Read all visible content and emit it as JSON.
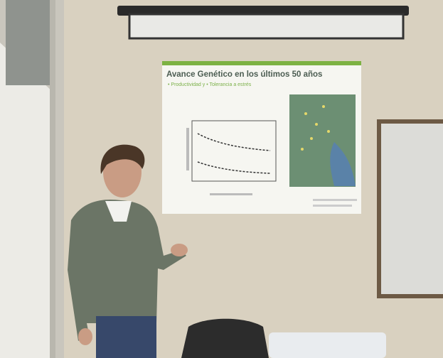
{
  "slide": {
    "title": "Avance Genético en los últimos 50 años",
    "subtitle": "• Productividad y • Tolerancia a estrés"
  }
}
